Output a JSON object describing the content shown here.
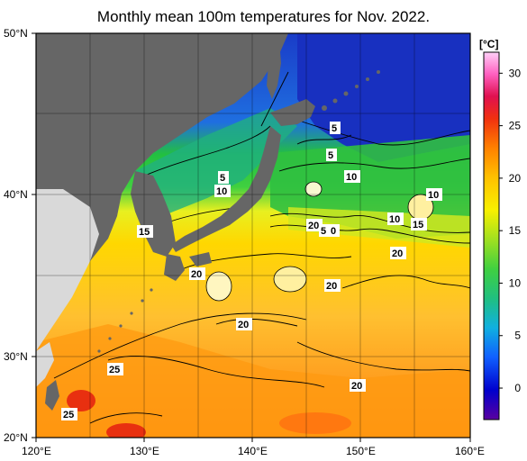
{
  "title": "Monthly mean 100m temperatures for Nov. 2022.",
  "map": {
    "lon_range": [
      120,
      160
    ],
    "lat_range": [
      20,
      50
    ],
    "lon_ticks": [
      "120°E",
      "130°E",
      "140°E",
      "150°E",
      "160°E"
    ],
    "lat_ticks": [
      "20°N",
      "30°N",
      "40°N",
      "50°N"
    ],
    "land_color": "#666666",
    "outer_land_color": "#d9d9d9",
    "grid_lines": true
  },
  "colorbar": {
    "unit": "[°C]",
    "min": -3,
    "max": 32,
    "ticks": [
      "0",
      "5",
      "10",
      "15",
      "20",
      "25",
      "30"
    ],
    "tick_values": [
      0,
      5,
      10,
      15,
      20,
      25,
      30
    ],
    "colors": [
      "#4b0082",
      "#0000cd",
      "#1e90ff",
      "#20c0d0",
      "#22c55e",
      "#9acd32",
      "#f0f000",
      "#ffd700",
      "#ffa500",
      "#ff4500",
      "#e00000",
      "#ff69b4",
      "#ffc0f0"
    ]
  },
  "contour_labels": [
    {
      "text": "5"
    },
    {
      "text": "5"
    },
    {
      "text": "5"
    },
    {
      "text": "10"
    },
    {
      "text": "10"
    },
    {
      "text": "10"
    },
    {
      "text": "10"
    },
    {
      "text": "15"
    },
    {
      "text": "15"
    },
    {
      "text": "20"
    },
    {
      "text": "5"
    },
    {
      "text": "0"
    },
    {
      "text": "20"
    },
    {
      "text": "20"
    },
    {
      "text": "20"
    },
    {
      "text": "20"
    },
    {
      "text": "20"
    },
    {
      "text": "25"
    },
    {
      "text": "25"
    }
  ]
}
